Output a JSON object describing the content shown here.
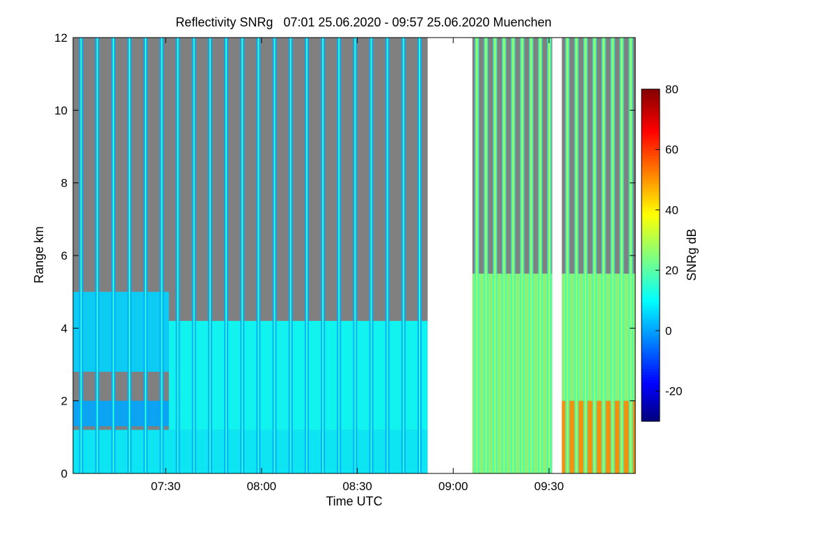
{
  "chart_data": {
    "type": "heatmap",
    "title": "Reflectivity SNRg   07:01 25.06.2020 - 09:57 25.06.2020 Muenchen",
    "xlabel": "Time UTC",
    "ylabel": "Range km",
    "colorbar_label": "SNRg dB",
    "xlim": [
      "07:01",
      "09:57"
    ],
    "ylim": [
      0,
      12
    ],
    "x_ticks": [
      "07:30",
      "08:00",
      "08:30",
      "09:00",
      "09:30"
    ],
    "y_ticks": [
      0,
      2,
      4,
      6,
      8,
      10,
      12
    ],
    "colorbar_range": [
      -30,
      80
    ],
    "colorbar_ticks": [
      -20,
      0,
      20,
      40,
      60,
      80
    ],
    "no_data_color": "#808080",
    "data_gap": {
      "start": "08:52",
      "end": "09:06"
    },
    "gap_2": {
      "start": "09:31",
      "end": "09:34"
    },
    "regions": [
      {
        "time_range": [
          "07:01",
          "07:31"
        ],
        "range_km": [
          2.8,
          5.0
        ],
        "snr_db": 5
      },
      {
        "time_range": [
          "07:01",
          "07:31"
        ],
        "range_km": [
          1.3,
          2.0
        ],
        "snr_db": 0
      },
      {
        "time_range": [
          "07:01",
          "08:52"
        ],
        "range_km": [
          0.0,
          1.2
        ],
        "snr_db": 8
      },
      {
        "time_range": [
          "07:31",
          "08:52"
        ],
        "range_km": [
          1.2,
          4.2
        ],
        "snr_db": 10
      },
      {
        "time_range": [
          "09:06",
          "09:31"
        ],
        "range_km": [
          0.0,
          5.5
        ],
        "snr_db": 25
      },
      {
        "time_range": [
          "09:34",
          "09:57"
        ],
        "range_km": [
          0.0,
          2.0
        ],
        "snr_db": 50
      },
      {
        "time_range": [
          "09:34",
          "09:57"
        ],
        "range_km": [
          2.0,
          5.5
        ],
        "snr_db": 25
      }
    ],
    "scan_spikes_per_segment": [
      22,
      18
    ]
  }
}
